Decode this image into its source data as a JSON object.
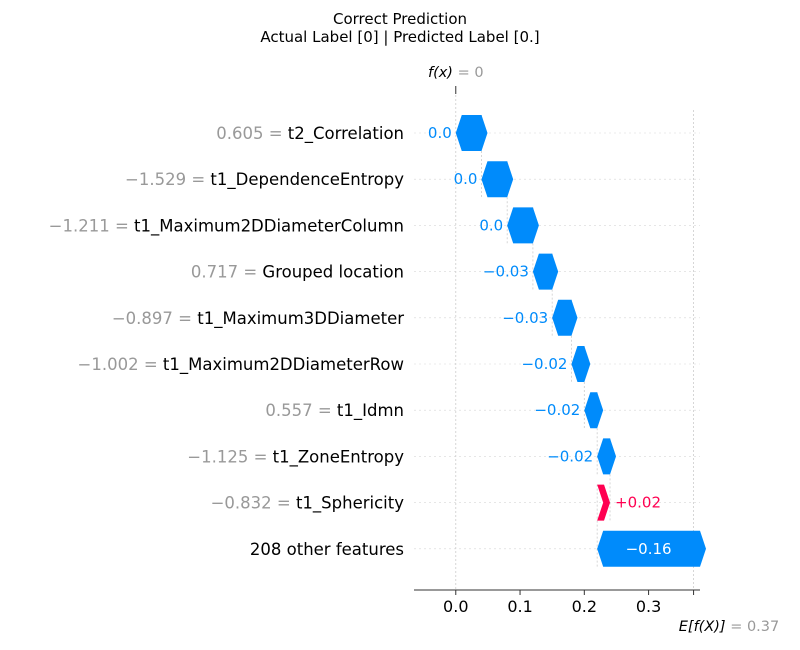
{
  "chart_data": {
    "type": "waterfall",
    "title": "Correct Prediction",
    "subtitle": "Actual Label [0] | Predicted Label [0.]",
    "fx_label": "f(x)",
    "fx_value": "= 0",
    "base_label": "E[f(X)]",
    "base_value": "= 0.37",
    "xlim": [
      -0.065,
      0.38
    ],
    "x_ticks": [
      0.0,
      0.1,
      0.2,
      0.3
    ],
    "x_tick_labels": [
      "0.0",
      "0.1",
      "0.2",
      "0.3"
    ],
    "fx": 0.0,
    "base": 0.37,
    "features": [
      {
        "value": "0.605",
        "name": "t2_Correlation",
        "shap": -0.04,
        "label": "0.0"
      },
      {
        "value": "−1.529",
        "name": "t1_DependenceEntropy",
        "shap": -0.04,
        "label": "0.0"
      },
      {
        "value": "−1.211",
        "name": "t1_Maximum2DDiameterColumn",
        "shap": -0.04,
        "label": "0.0"
      },
      {
        "value": "0.717",
        "name": "Grouped location",
        "shap": -0.03,
        "label": "−0.03"
      },
      {
        "value": "−0.897",
        "name": "t1_Maximum3DDiameter",
        "shap": -0.03,
        "label": "−0.03"
      },
      {
        "value": "−1.002",
        "name": "t1_Maximum2DDiameterRow",
        "shap": -0.02,
        "label": "−0.02"
      },
      {
        "value": "0.557",
        "name": "t1_Idmn",
        "shap": -0.02,
        "label": "−0.02"
      },
      {
        "value": "−1.125",
        "name": "t1_ZoneEntropy",
        "shap": -0.02,
        "label": "−0.02"
      },
      {
        "value": "−0.832",
        "name": "t1_Sphericity",
        "shap": 0.02,
        "label": "+0.02"
      },
      {
        "value": "",
        "name": "208 other features",
        "shap": -0.16,
        "label": "−0.16"
      }
    ],
    "colors": {
      "negative": "#008bfb",
      "positive": "#ff0051",
      "value_text": "#999999",
      "grid": "#cccccc"
    }
  }
}
